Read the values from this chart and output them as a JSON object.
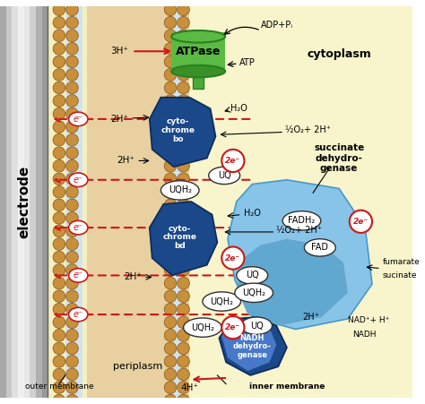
{
  "bg_color": "#f5f0c0",
  "cytoplasm_color": "#f8f5cc",
  "periplasm_color": "#e8d0a0",
  "electrode_color_left": "#e0e0e0",
  "electrode_color_right": "#a0a0a0",
  "bead_color": "#c8903c",
  "bead_outline": "#906020",
  "bilayer_blue": "#c8dde8",
  "atpase_green": "#4aaa38",
  "atpase_dark": "#2a7a20",
  "cyto_blue_dark": "#1a4a8a",
  "cyto_blue_mid": "#2860a8",
  "cyto_blue_light": "#4878b8",
  "succinate_blue": "#78b8e0",
  "succinate_blue2": "#5098c8",
  "electron_red": "#cc1818",
  "arrow_red": "#cc1818",
  "labels": {
    "electrode": "electrode",
    "cytoplasm": "cytoplasm",
    "outer_membrane": "outer membrane",
    "inner_membrane": "inner membrane",
    "periplasm": "periplasm",
    "atpase": "ATPase",
    "adp_pi": "ADP+Pᵢ",
    "atp": "ATP",
    "cyto_bo": "cyto-\nchrome\nbo",
    "cyto_bd": "cyto-\nchrome\nbd",
    "succinate_dh": "succinate\ndehydro-\ngenase",
    "nadh_dh": "NADH\ndehydro-\ngenase",
    "uq": "UQ",
    "uqh2": "UQH₂",
    "fadh2": "FADH₂",
    "fad": "FAD",
    "h2o": "H₂O",
    "o2_2h": "½O₂+ 2H⁺",
    "2h": "2H⁺",
    "3h": "3H⁺",
    "4h": "4H⁺",
    "nad": "NAD⁺+ H⁺",
    "nadh": "NADH",
    "fumarate": "fumarate",
    "sucinate": "sucinate",
    "2e": "2e⁻",
    "e": "e⁻"
  }
}
